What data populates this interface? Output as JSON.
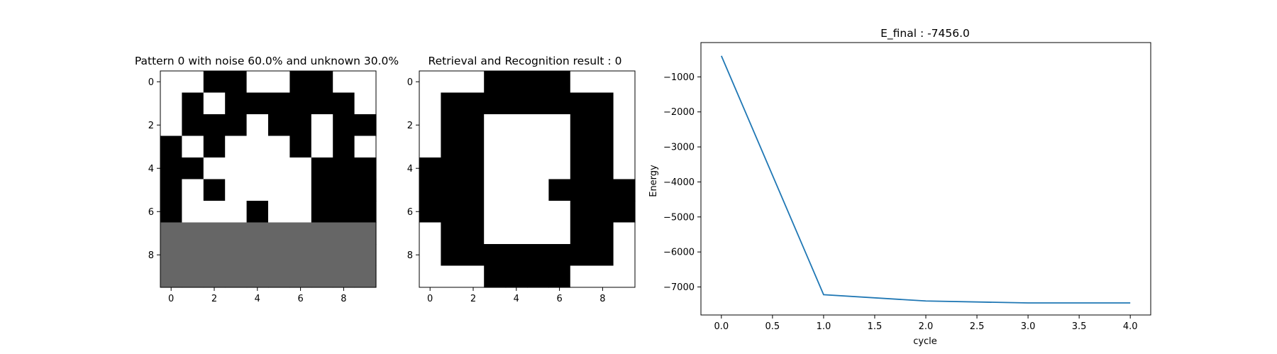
{
  "colors": {
    "white": "#ffffff",
    "black": "#000000",
    "unknown": "#666666",
    "line": "#1f77b4",
    "axis": "#000000"
  },
  "chart_data": [
    {
      "type": "heatmap",
      "title": "Pattern 0 with noise 60.0% and unknown 30.0%",
      "x_ticks": [
        0,
        2,
        4,
        6,
        8
      ],
      "y_ticks": [
        0,
        2,
        4,
        6,
        8
      ],
      "xlim": [
        -0.5,
        9.5
      ],
      "ylim": [
        9.5,
        -0.5
      ],
      "legend": "none",
      "value_meaning": {
        "1": "black",
        "-1": "white",
        "0": "unknown (gray)"
      },
      "values": [
        [
          -1,
          -1,
          1,
          1,
          -1,
          -1,
          1,
          1,
          -1,
          -1
        ],
        [
          -1,
          1,
          -1,
          1,
          1,
          1,
          1,
          1,
          1,
          -1
        ],
        [
          -1,
          1,
          1,
          1,
          -1,
          1,
          1,
          -1,
          1,
          1
        ],
        [
          1,
          -1,
          1,
          -1,
          -1,
          -1,
          1,
          -1,
          1,
          -1
        ],
        [
          1,
          1,
          -1,
          -1,
          -1,
          -1,
          -1,
          1,
          1,
          1
        ],
        [
          1,
          -1,
          1,
          -1,
          -1,
          -1,
          -1,
          1,
          1,
          1
        ],
        [
          1,
          -1,
          -1,
          -1,
          1,
          -1,
          -1,
          1,
          1,
          1
        ],
        [
          0,
          0,
          0,
          0,
          0,
          0,
          0,
          0,
          0,
          0
        ],
        [
          0,
          0,
          0,
          0,
          0,
          0,
          0,
          0,
          0,
          0
        ],
        [
          0,
          0,
          0,
          0,
          0,
          0,
          0,
          0,
          0,
          0
        ]
      ]
    },
    {
      "type": "heatmap",
      "title": "Retrieval and Recognition result : 0",
      "x_ticks": [
        0,
        2,
        4,
        6,
        8
      ],
      "y_ticks": [
        0,
        2,
        4,
        6,
        8
      ],
      "xlim": [
        -0.5,
        9.5
      ],
      "ylim": [
        9.5,
        -0.5
      ],
      "legend": "none",
      "value_meaning": {
        "1": "black",
        "-1": "white"
      },
      "values": [
        [
          -1,
          -1,
          -1,
          1,
          1,
          1,
          1,
          -1,
          -1,
          -1
        ],
        [
          -1,
          1,
          1,
          1,
          1,
          1,
          1,
          1,
          1,
          -1
        ],
        [
          -1,
          1,
          1,
          -1,
          -1,
          -1,
          -1,
          1,
          1,
          -1
        ],
        [
          -1,
          1,
          1,
          -1,
          -1,
          -1,
          -1,
          1,
          1,
          -1
        ],
        [
          1,
          1,
          1,
          -1,
          -1,
          -1,
          -1,
          1,
          1,
          -1
        ],
        [
          1,
          1,
          1,
          -1,
          -1,
          -1,
          1,
          1,
          1,
          1
        ],
        [
          1,
          1,
          1,
          -1,
          -1,
          -1,
          -1,
          1,
          1,
          1
        ],
        [
          -1,
          1,
          1,
          -1,
          -1,
          -1,
          -1,
          1,
          1,
          -1
        ],
        [
          -1,
          1,
          1,
          1,
          1,
          1,
          1,
          1,
          1,
          -1
        ],
        [
          -1,
          -1,
          -1,
          1,
          1,
          1,
          1,
          -1,
          -1,
          -1
        ]
      ]
    },
    {
      "type": "line",
      "title": "E_final : -7456.0",
      "xlabel": "cycle",
      "ylabel": "Energy",
      "x": [
        0,
        1,
        2,
        3,
        4
      ],
      "series": [
        {
          "values": [
            -400,
            -7220,
            -7400,
            -7456,
            -7456
          ]
        }
      ],
      "xlim": [
        -0.2,
        4.2
      ],
      "ylim": [
        -7800,
        -20
      ],
      "x_ticks": [
        "0.0",
        "0.5",
        "1.0",
        "1.5",
        "2.0",
        "2.5",
        "3.0",
        "3.5",
        "4.0"
      ],
      "y_ticks": [
        -1000,
        -2000,
        -3000,
        -4000,
        -5000,
        -6000,
        -7000
      ],
      "grid": false,
      "legend": "none"
    }
  ]
}
